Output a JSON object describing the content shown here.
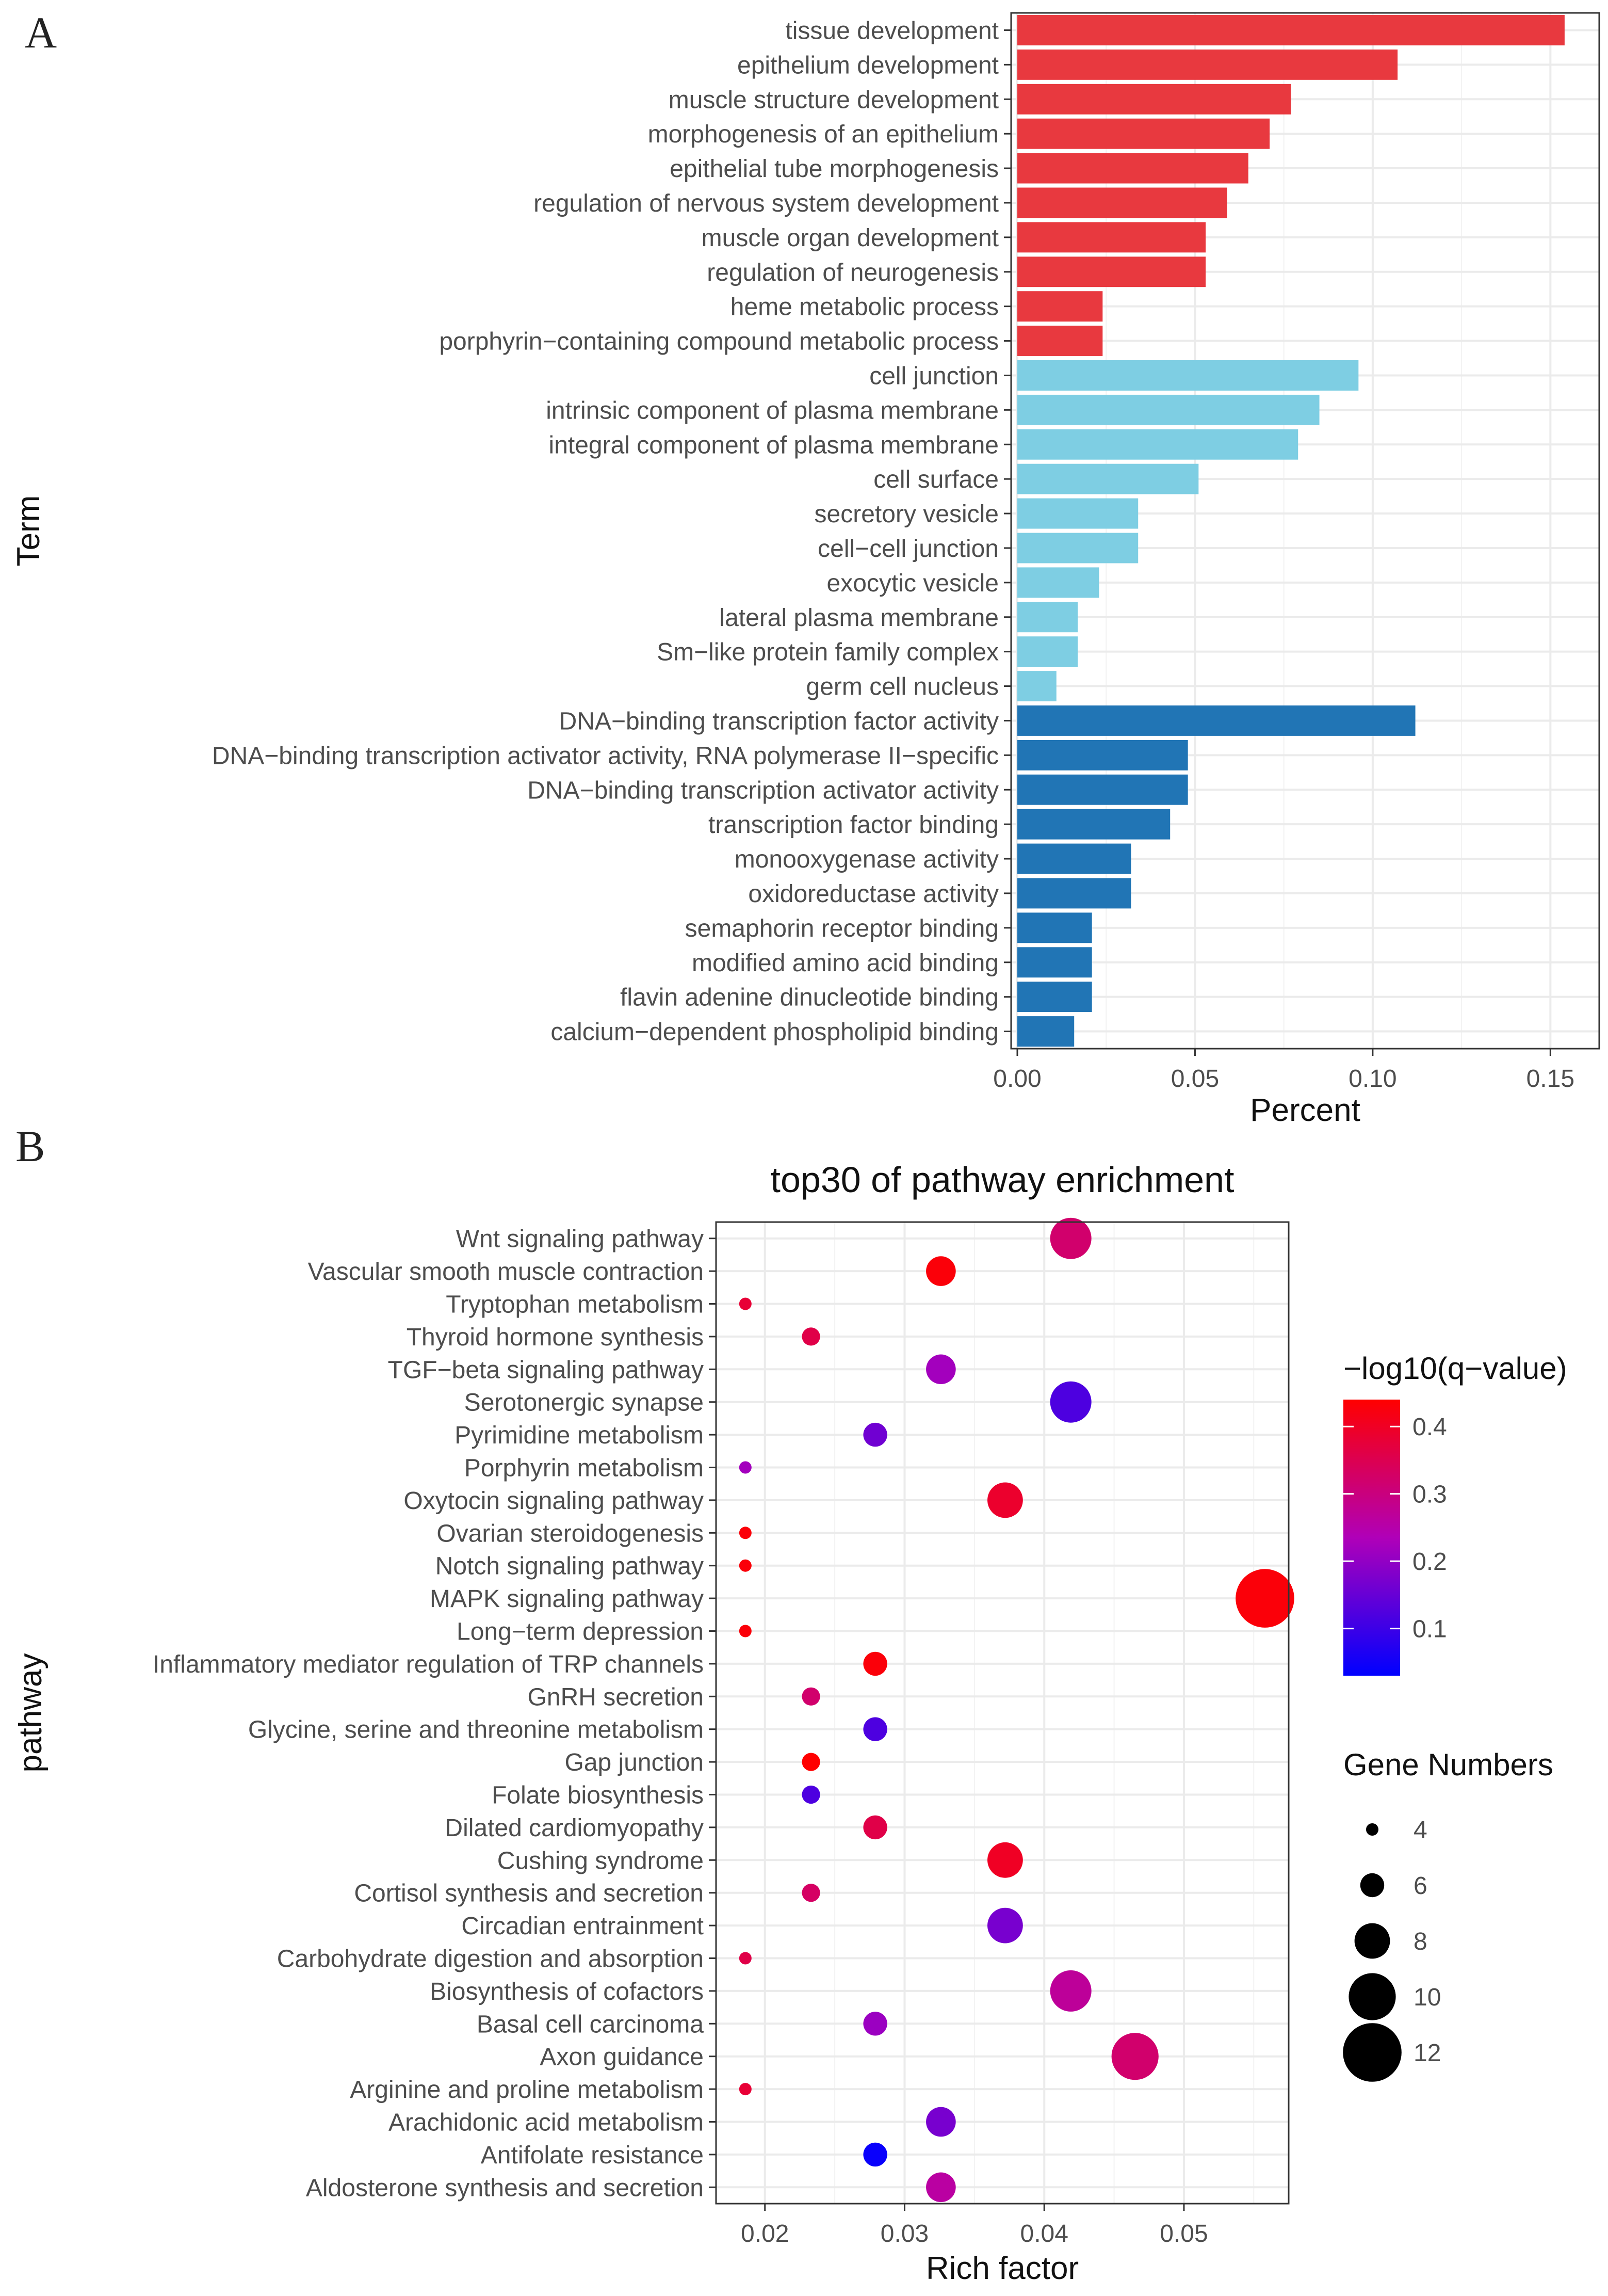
{
  "panel_labels": {
    "a": "A",
    "b": "B"
  },
  "colors": {
    "biological_process": "#E8393F",
    "cellular_component": "#7ECEE3",
    "molecular_function": "#2175B5",
    "grid": "#EBEBEB",
    "panel_border": "#333333",
    "qvalue_low": "#0000FF",
    "qvalue_high": "#FF0000"
  },
  "chart_data": [
    {
      "type": "bar",
      "orientation": "horizontal",
      "panel": "A",
      "xlabel": "Percent",
      "ylabel": "Term",
      "xlim": [
        0,
        0.162
      ],
      "xticks": [
        0.0,
        0.05,
        0.1,
        0.15
      ],
      "xtick_labels": [
        "0.00",
        "0.05",
        "0.10",
        "0.15"
      ],
      "grid": true,
      "legend": "none",
      "categories": [
        "tissue development",
        "epithelium development",
        "muscle structure development",
        "morphogenesis of an epithelium",
        "epithelial tube morphogenesis",
        "regulation of nervous system development",
        "muscle organ development",
        "regulation of neurogenesis",
        "heme metabolic process",
        "porphyrin−containing compound metabolic process",
        "cell junction",
        "intrinsic component of plasma membrane",
        "integral component of plasma membrane",
        "cell surface",
        "secretory vesicle",
        "cell−cell junction",
        "exocytic vesicle",
        "lateral plasma membrane",
        "Sm−like protein family complex",
        "germ cell nucleus",
        "DNA−binding transcription factor activity",
        "DNA−binding transcription activator activity, RNA polymerase II−specific",
        "DNA−binding transcription activator activity",
        "transcription factor binding",
        "monooxygenase activity",
        "oxidoreductase activity",
        "semaphorin receptor binding",
        "modified amino acid binding",
        "flavin adenine dinucleotide binding",
        "calcium−dependent phospholipid binding"
      ],
      "values": [
        0.154,
        0.107,
        0.077,
        0.071,
        0.065,
        0.059,
        0.053,
        0.053,
        0.024,
        0.024,
        0.096,
        0.085,
        0.079,
        0.051,
        0.034,
        0.034,
        0.023,
        0.017,
        0.017,
        0.011,
        0.112,
        0.048,
        0.048,
        0.043,
        0.032,
        0.032,
        0.021,
        0.021,
        0.021,
        0.016
      ],
      "groups": [
        "BP",
        "BP",
        "BP",
        "BP",
        "BP",
        "BP",
        "BP",
        "BP",
        "BP",
        "BP",
        "CC",
        "CC",
        "CC",
        "CC",
        "CC",
        "CC",
        "CC",
        "CC",
        "CC",
        "CC",
        "MF",
        "MF",
        "MF",
        "MF",
        "MF",
        "MF",
        "MF",
        "MF",
        "MF",
        "MF"
      ]
    },
    {
      "type": "scatter",
      "panel": "B",
      "title": "top30 of pathway enrichment",
      "xlabel": "Rich factor",
      "ylabel": "pathway",
      "xlim": [
        0.0165,
        0.0575
      ],
      "xticks": [
        0.02,
        0.03,
        0.04,
        0.05
      ],
      "xtick_labels": [
        "0.02",
        "0.03",
        "0.04",
        "0.05"
      ],
      "grid": true,
      "legend": "right",
      "color_legend": {
        "title": "−log10(q−value)",
        "range": [
          0.03,
          0.44
        ],
        "ticks": [
          0.1,
          0.2,
          0.3,
          0.4
        ],
        "tick_labels": [
          "0.1",
          "0.2",
          "0.3",
          "0.4"
        ]
      },
      "size_legend": {
        "title": "Gene Numbers",
        "values": [
          4,
          6,
          8,
          10,
          12
        ],
        "labels": [
          "4",
          "6",
          "8",
          "10",
          "12"
        ]
      },
      "points": [
        {
          "pathway": "Wnt signaling pathway",
          "rich_factor": 0.0419,
          "genes": 9,
          "neglog10q": 0.32
        },
        {
          "pathway": "Vascular smooth muscle contraction",
          "rich_factor": 0.0326,
          "genes": 7,
          "neglog10q": 0.43
        },
        {
          "pathway": "Tryptophan metabolism",
          "rich_factor": 0.0186,
          "genes": 4,
          "neglog10q": 0.38
        },
        {
          "pathway": "Thyroid hormone synthesis",
          "rich_factor": 0.0233,
          "genes": 5,
          "neglog10q": 0.36
        },
        {
          "pathway": "TGF−beta signaling pathway",
          "rich_factor": 0.0326,
          "genes": 7,
          "neglog10q": 0.22
        },
        {
          "pathway": "Serotonergic synapse",
          "rich_factor": 0.0419,
          "genes": 9,
          "neglog10q": 0.12
        },
        {
          "pathway": "Pyrimidine metabolism",
          "rich_factor": 0.0279,
          "genes": 6,
          "neglog10q": 0.16
        },
        {
          "pathway": "Porphyrin metabolism",
          "rich_factor": 0.0186,
          "genes": 4,
          "neglog10q": 0.22
        },
        {
          "pathway": "Oxytocin signaling pathway",
          "rich_factor": 0.0372,
          "genes": 8,
          "neglog10q": 0.39
        },
        {
          "pathway": "Ovarian steroidogenesis",
          "rich_factor": 0.0186,
          "genes": 4,
          "neglog10q": 0.43
        },
        {
          "pathway": "Notch signaling pathway",
          "rich_factor": 0.0186,
          "genes": 4,
          "neglog10q": 0.43
        },
        {
          "pathway": "MAPK signaling pathway",
          "rich_factor": 0.0558,
          "genes": 12,
          "neglog10q": 0.43
        },
        {
          "pathway": "Long−term depression",
          "rich_factor": 0.0186,
          "genes": 4,
          "neglog10q": 0.43
        },
        {
          "pathway": "Inflammatory mediator regulation of TRP channels",
          "rich_factor": 0.0279,
          "genes": 6,
          "neglog10q": 0.43
        },
        {
          "pathway": "GnRH secretion",
          "rich_factor": 0.0233,
          "genes": 5,
          "neglog10q": 0.32
        },
        {
          "pathway": "Glycine, serine and threonine metabolism",
          "rich_factor": 0.0279,
          "genes": 6,
          "neglog10q": 0.12
        },
        {
          "pathway": "Gap junction",
          "rich_factor": 0.0233,
          "genes": 5,
          "neglog10q": 0.44
        },
        {
          "pathway": "Folate biosynthesis",
          "rich_factor": 0.0233,
          "genes": 5,
          "neglog10q": 0.12
        },
        {
          "pathway": "Dilated cardiomyopathy",
          "rich_factor": 0.0279,
          "genes": 6,
          "neglog10q": 0.36
        },
        {
          "pathway": "Cushing syndrome",
          "rich_factor": 0.0372,
          "genes": 8,
          "neglog10q": 0.4
        },
        {
          "pathway": "Cortisol synthesis and secretion",
          "rich_factor": 0.0233,
          "genes": 5,
          "neglog10q": 0.33
        },
        {
          "pathway": "Circadian entrainment",
          "rich_factor": 0.0372,
          "genes": 8,
          "neglog10q": 0.17
        },
        {
          "pathway": "Carbohydrate digestion and absorption",
          "rich_factor": 0.0186,
          "genes": 4,
          "neglog10q": 0.36
        },
        {
          "pathway": "Biosynthesis of cofactors",
          "rich_factor": 0.0419,
          "genes": 9,
          "neglog10q": 0.27
        },
        {
          "pathway": "Basal cell carcinoma",
          "rich_factor": 0.0279,
          "genes": 6,
          "neglog10q": 0.21
        },
        {
          "pathway": "Axon guidance",
          "rich_factor": 0.0465,
          "genes": 10,
          "neglog10q": 0.32
        },
        {
          "pathway": "Arginine and proline metabolism",
          "rich_factor": 0.0186,
          "genes": 4,
          "neglog10q": 0.38
        },
        {
          "pathway": "Arachidonic acid metabolism",
          "rich_factor": 0.0326,
          "genes": 7,
          "neglog10q": 0.17
        },
        {
          "pathway": "Antifolate resistance",
          "rich_factor": 0.0279,
          "genes": 6,
          "neglog10q": 0.04
        },
        {
          "pathway": "Aldosterone synthesis and secretion",
          "rich_factor": 0.0326,
          "genes": 7,
          "neglog10q": 0.26
        }
      ]
    }
  ]
}
